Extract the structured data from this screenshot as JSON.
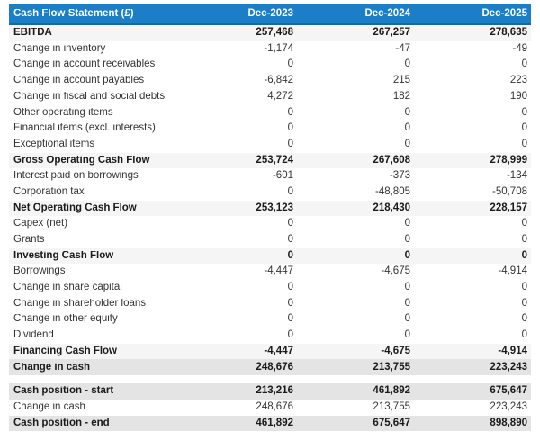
{
  "colors": {
    "header_bg": "#1b7ec6",
    "header_border": "#15699f",
    "header_text": "#ffffff",
    "subtotal_row_bg": "#f5f5f5",
    "summary_row_bg": "#e4e4e4",
    "body_text": "#333333",
    "bold_text": "#1a1a1a"
  },
  "chart_data": {
    "type": "table",
    "title": "Cash Flow Statement (£)",
    "columns": [
      "Dec-2023",
      "Dec-2024",
      "Dec-2025"
    ],
    "groups": [
      {
        "rows": [
          {
            "label": "EBITDA",
            "style": "subtotal",
            "values": [
              "257,468",
              "267,257",
              "278,635"
            ]
          },
          {
            "label": "Change in inventory",
            "style": "plain",
            "values": [
              "-1,174",
              "-47",
              "-49"
            ]
          },
          {
            "label": "Change in account receivables",
            "style": "plain",
            "values": [
              "0",
              "0",
              "0"
            ]
          },
          {
            "label": "Change in account payables",
            "style": "plain",
            "values": [
              "-6,842",
              "215",
              "223"
            ]
          },
          {
            "label": "Change in fiscal and social debts",
            "style": "plain",
            "values": [
              "4,272",
              "182",
              "190"
            ]
          },
          {
            "label": "Other operating items",
            "style": "plain",
            "values": [
              "0",
              "0",
              "0"
            ]
          },
          {
            "label": "Financial items (excl. interests)",
            "style": "plain",
            "values": [
              "0",
              "0",
              "0"
            ]
          },
          {
            "label": "Exceptional items",
            "style": "plain",
            "values": [
              "0",
              "0",
              "0"
            ]
          },
          {
            "label": "Gross Operating Cash Flow",
            "style": "subtotal",
            "values": [
              "253,724",
              "267,608",
              "278,999"
            ]
          },
          {
            "label": "Interest paid on borrowings",
            "style": "plain",
            "values": [
              "-601",
              "-373",
              "-134"
            ]
          },
          {
            "label": "Corporation tax",
            "style": "plain",
            "values": [
              "0",
              "-48,805",
              "-50,708"
            ]
          },
          {
            "label": "Net Operating Cash Flow",
            "style": "subtotal",
            "values": [
              "253,123",
              "218,430",
              "228,157"
            ]
          },
          {
            "label": "Capex (net)",
            "style": "plain",
            "values": [
              "0",
              "0",
              "0"
            ]
          },
          {
            "label": "Grants",
            "style": "plain",
            "values": [
              "0",
              "0",
              "0"
            ]
          },
          {
            "label": "Investing Cash Flow",
            "style": "subtotal",
            "values": [
              "0",
              "0",
              "0"
            ]
          },
          {
            "label": "Borrowings",
            "style": "plain",
            "values": [
              "-4,447",
              "-4,675",
              "-4,914"
            ]
          },
          {
            "label": "Change in share capital",
            "style": "plain",
            "values": [
              "0",
              "0",
              "0"
            ]
          },
          {
            "label": "Change in shareholder loans",
            "style": "plain",
            "values": [
              "0",
              "0",
              "0"
            ]
          },
          {
            "label": "Change in other equity",
            "style": "plain",
            "values": [
              "0",
              "0",
              "0"
            ]
          },
          {
            "label": "Dividend",
            "style": "plain",
            "values": [
              "0",
              "0",
              "0"
            ]
          },
          {
            "label": "Financing Cash Flow",
            "style": "subtotal",
            "values": [
              "-4,447",
              "-4,675",
              "-4,914"
            ]
          },
          {
            "label": "Change in cash",
            "style": "summary",
            "values": [
              "248,676",
              "213,755",
              "223,243"
            ]
          }
        ]
      },
      {
        "rows": [
          {
            "label": "Cash position - start",
            "style": "summary",
            "values": [
              "213,216",
              "461,892",
              "675,647"
            ]
          },
          {
            "label": "Change in cash",
            "style": "plain",
            "values": [
              "248,676",
              "213,755",
              "223,243"
            ]
          },
          {
            "label": "Cash position - end",
            "style": "summary",
            "values": [
              "461,892",
              "675,647",
              "898,890"
            ]
          }
        ]
      }
    ]
  }
}
